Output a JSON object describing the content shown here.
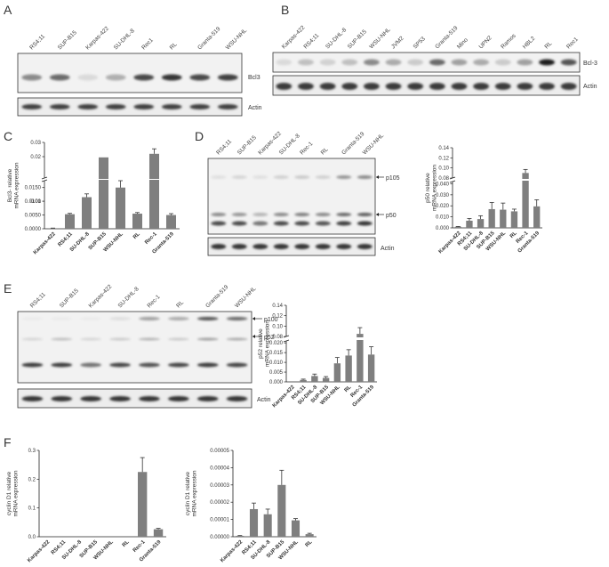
{
  "panels": {
    "A": {
      "label": "A",
      "lanes": [
        "RS4;11",
        "SUP-B15",
        "Karpas-422",
        "SU-DHL-8",
        "Rec1",
        "RL",
        "Granta-519",
        "WSU-NHL"
      ],
      "bands": [
        "Bcl3",
        "Actin"
      ],
      "bcl3_intensity": [
        0.45,
        0.6,
        0.08,
        0.28,
        0.75,
        0.85,
        0.75,
        0.8
      ]
    },
    "B": {
      "label": "B",
      "lanes": [
        "Karpas-422",
        "RS4;11",
        "SU-DHL-8",
        "SUP-B15",
        "WSU-NHL",
        "JVM2",
        "SP53",
        "Granta-519",
        "Mino",
        "UPN2",
        "Ramos",
        "HBL2",
        "RL",
        "Rec1"
      ],
      "bands": [
        "Bcl-3",
        "Actin"
      ],
      "bcl3_intensity": [
        0.08,
        0.2,
        0.12,
        0.2,
        0.45,
        0.3,
        0.15,
        0.6,
        0.35,
        0.3,
        0.15,
        0.35,
        0.95,
        0.7
      ]
    },
    "C": {
      "label": "C"
    },
    "D": {
      "label": "D",
      "lanes": [
        "RS4;11",
        "SUP-B15",
        "Karpas-422",
        "SU-DHL-8",
        "Rec-1",
        "RL",
        "Granta-519",
        "WSU-NHL"
      ],
      "markers": [
        "p105",
        "p50"
      ],
      "actin": "Actin"
    },
    "E": {
      "label": "E",
      "lanes": [
        "RS4;11",
        "SUP-B15",
        "Karpas-422",
        "SU-DHL-8",
        "Rec-1",
        "RL",
        "Granta-519",
        "WSU-NHL"
      ],
      "markers": [
        "p100",
        "p52"
      ],
      "actin": "Actin"
    },
    "F": {
      "label": "F"
    }
  },
  "chart_data": [
    {
      "id": "C",
      "type": "bar",
      "ylabel": "Bcl3- relative mRNA expression",
      "categories": [
        "Karpas-422",
        "RS4;11",
        "SU-DHL-8",
        "SUP-B15",
        "WSU-NHL",
        "RL",
        "Rec-1",
        "Granta-519"
      ],
      "values": [
        0.0002,
        0.0053,
        0.0115,
        0.0195,
        0.015,
        0.0055,
        0.022,
        0.005
      ],
      "errors": [
        5e-05,
        0.0003,
        0.0012,
        0.0,
        0.0025,
        0.0004,
        0.0035,
        0.0005
      ],
      "yticks_lower": [
        "0.0000",
        "0.0050",
        "0.0100",
        "0.0150"
      ],
      "yticks_upper": [
        "0.01",
        "0.02",
        "0.03"
      ]
    },
    {
      "id": "D",
      "type": "bar",
      "ylabel": "p50 relative mRNA expression",
      "categories": [
        "Karpas-422",
        "RS4;11",
        "SU-DHL-8",
        "SUP-B15",
        "WSU-NHL",
        "RL",
        "Rec-1",
        "Granta-519"
      ],
      "values": [
        0.001,
        0.0065,
        0.008,
        0.017,
        0.0165,
        0.015,
        0.09,
        0.0195
      ],
      "errors": [
        0.0003,
        0.002,
        0.003,
        0.006,
        0.006,
        0.002,
        0.007,
        0.006
      ],
      "yticks_lower": [
        "0.000",
        "0.010",
        "0.020",
        "0.030",
        "0.040"
      ],
      "yticks_upper": [
        "0.08",
        "0.10",
        "0.12",
        "0.14"
      ]
    },
    {
      "id": "E",
      "type": "bar",
      "ylabel": "p52 relative mRNA expression",
      "categories": [
        "Karpas-422",
        "RS4;11",
        "SU-DHL-8",
        "SUP-B15",
        "WSU-NHL",
        "RL",
        "Rec-1",
        "Granta-519"
      ],
      "values": [
        0.0,
        0.001,
        0.003,
        0.002,
        0.0095,
        0.0135,
        0.085,
        0.014
      ],
      "errors": [
        0.0,
        0.0004,
        0.001,
        0.0007,
        0.003,
        0.003,
        0.012,
        0.004
      ],
      "yticks_lower": [
        "0.000",
        "0.005",
        "0.010",
        "0.015",
        "0.020"
      ],
      "yticks_upper": [
        "0.08",
        "0.10",
        "0.12",
        "0.14"
      ]
    },
    {
      "id": "F1",
      "type": "bar",
      "ylabel": "cyclin D1 relative mRNA expression",
      "categories": [
        "Karpas-422",
        "RS4;11",
        "SU-DHL-8",
        "SUP-B15",
        "WSU-NHL",
        "RL",
        "Rec-1",
        "Granta-519"
      ],
      "values": [
        0.0,
        0.0,
        0.0,
        0.0,
        0.0,
        0.0,
        0.225,
        0.026
      ],
      "errors": [
        0.0,
        0.0,
        0.0,
        0.0,
        0.0,
        0.0,
        0.05,
        0.003
      ],
      "yticks": [
        "0.0",
        "0.1",
        "0.2",
        "0.3"
      ],
      "ylim": [
        0,
        0.3
      ]
    },
    {
      "id": "F2",
      "type": "bar",
      "ylabel": "cyclin D1 relative mRNA expression",
      "categories": [
        "Karpas-422",
        "RS4;11",
        "SU-DHL-8",
        "SUP-B15",
        "WSU-NHL",
        "RL"
      ],
      "values": [
        5e-07,
        1.6e-05,
        1.3e-05,
        3e-05,
        9.5e-06,
        1.5e-06
      ],
      "errors": [
        2e-07,
        3.5e-06,
        3e-06,
        8.5e-06,
        1e-06,
        5e-07
      ],
      "yticks": [
        "0.00000",
        "0.00001",
        "0.00002",
        "0.00003",
        "0.00004",
        "0.00005"
      ],
      "ylim": [
        0,
        5e-05
      ]
    }
  ]
}
